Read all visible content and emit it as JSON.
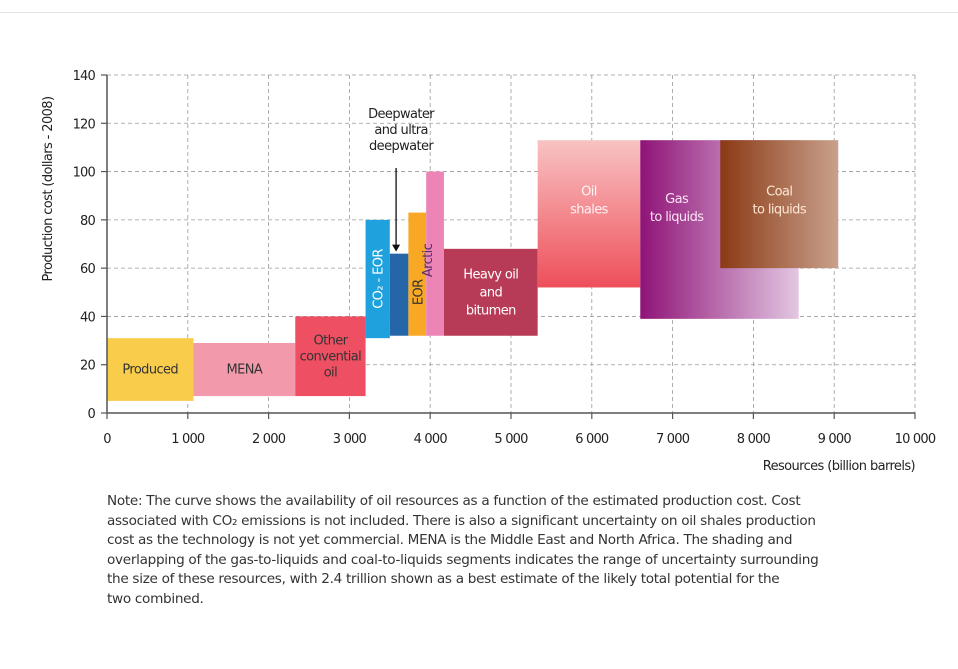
{
  "chart_data": {
    "type": "bar",
    "subtype": "supply-cost-curve",
    "xlabel": "Resources (billion barrels)",
    "ylabel": "Production cost (dollars - 2008)",
    "xlim": [
      0,
      10000
    ],
    "ylim": [
      0,
      140
    ],
    "xticks": [
      0,
      1000,
      2000,
      3000,
      4000,
      5000,
      6000,
      7000,
      8000,
      9000,
      10000
    ],
    "xtick_labels": [
      "0",
      "1 000",
      "2 000",
      "3 000",
      "4 000",
      "5 000",
      "6 000",
      "7 000",
      "8 000",
      "9 000",
      "10 000"
    ],
    "yticks": [
      0,
      20,
      40,
      60,
      80,
      100,
      120,
      140
    ],
    "ytick_labels": [
      "0",
      "20",
      "40",
      "60",
      "80",
      "100",
      "120",
      "140"
    ],
    "grid": true,
    "segments": [
      {
        "label": "Produced",
        "x0": 0,
        "x1": 1070,
        "ymin": 5,
        "ymax": 31,
        "color": "#f9cd4b",
        "text_color": "#333333"
      },
      {
        "label": "MENA",
        "x0": 1070,
        "x1": 2330,
        "ymin": 7,
        "ymax": 29,
        "color": "#f29aab",
        "text_color": "#333333"
      },
      {
        "label": "Other conventional oil",
        "lines": [
          "Other",
          "convential",
          "oil"
        ],
        "x0": 2330,
        "x1": 3200,
        "ymin": 7,
        "ymax": 40,
        "color": "#ef4f63",
        "text_color": "#333333"
      },
      {
        "label": "CO₂ - EOR",
        "x0": 3200,
        "x1": 3500,
        "ymin": 31,
        "ymax": 80,
        "color": "#1ea1dd",
        "text_color": "#ffffff",
        "rotated": true
      },
      {
        "label": "Deepwater and ultra deepwater",
        "x0": 3500,
        "x1": 3730,
        "ymin": 32,
        "ymax": 66,
        "color": "#2466a8",
        "text_color": "#222222"
      },
      {
        "label": "EOR",
        "x0": 3730,
        "x1": 3950,
        "ymin": 32,
        "ymax": 83,
        "color": "#f8a824",
        "text_color": "#333333",
        "rotated": true
      },
      {
        "label": "Arctic",
        "x0": 3950,
        "x1": 4170,
        "ymin": 32,
        "ymax": 100,
        "color": "#ec85b6",
        "text_color": "#5a2d6e",
        "rotated": true
      },
      {
        "label": "Heavy oil and bitumen",
        "lines": [
          "Heavy oil",
          "and",
          "bitumen"
        ],
        "x0": 4170,
        "x1": 5330,
        "ymin": 32,
        "ymax": 68,
        "color": "#b73a56",
        "text_color": "#ffffff"
      },
      {
        "label": "Oil shales",
        "lines": [
          "Oil",
          "shales"
        ],
        "x0": 5330,
        "x1": 6600,
        "ymin": 52,
        "ymax": 113,
        "gradient": [
          "#f8c3c3",
          "#ee4f5a"
        ],
        "gradient_dir": "vertical",
        "text_color": "#fff3f3"
      },
      {
        "label": "Gas to liquids",
        "lines": [
          "Gas",
          "to liquids"
        ],
        "x0": 6600,
        "x1": 8560,
        "ymin": 39,
        "ymax": 113,
        "gradient": [
          "#8f1377",
          "#e2c7e2"
        ],
        "gradient_dir": "horizontal",
        "text_color": "#fde3f6"
      },
      {
        "label": "Coal to liquids",
        "lines": [
          "Coal",
          "to liquids"
        ],
        "x0": 7590,
        "x1": 9050,
        "ymin": 60,
        "ymax": 113,
        "gradient": [
          "#8a3a14",
          "#c9a08c"
        ],
        "gradient_dir": "horizontal",
        "text_color": "#fde7d2"
      }
    ],
    "annotations": [
      {
        "text_lines": [
          "Deepwater",
          "and ultra",
          "deepwater"
        ],
        "points_to": "Deepwater and ultra deepwater",
        "arrow": true
      }
    ]
  },
  "note_lines": [
    "Note: The curve shows the availability of oil resources as a function of the estimated production cost. Cost",
    "associated with CO₂ emissions is not included. There is also a significant uncertainty on oil shales production",
    "cost as the technology is not yet commercial. MENA is the Middle East and North Africa. The shading and",
    "overlapping of the gas-to-liquids and coal-to-liquids segments indicates the range of uncertainty surrounding",
    "the size of these resources, with 2.4 trillion shown as a best estimate of the likely total potential for the",
    "two combined."
  ]
}
